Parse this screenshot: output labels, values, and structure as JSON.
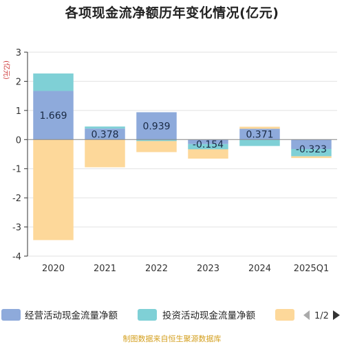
{
  "title": "各项现金流净额历年变化情况(亿元)",
  "footer": "制图数据来自恒生聚源数据库",
  "chart_data": {
    "type": "bar",
    "stacked": true,
    "title": "各项现金流净额历年变化情况(亿元)",
    "ylabel": "(亿元)",
    "ylim": [
      -4,
      3
    ],
    "yticks": [
      3,
      2,
      1,
      0,
      -1,
      -2,
      -3,
      -4
    ],
    "grid": true,
    "categories": [
      "2020",
      "2021",
      "2022",
      "2023",
      "2024",
      "2025Q1"
    ],
    "series": [
      {
        "name": "经营活动现金流量净额",
        "color": "#8eaadb",
        "values": [
          1.669,
          0.378,
          0.939,
          -0.154,
          0.371,
          -0.323
        ],
        "show_labels": true
      },
      {
        "name": "投资活动现金流量净额",
        "color": "#7fd0d6",
        "values": [
          0.6,
          0.07,
          -0.05,
          -0.18,
          -0.22,
          -0.25
        ],
        "show_labels": false
      },
      {
        "name": "",
        "color": "#fdd89a",
        "values": [
          -3.45,
          -0.95,
          -0.38,
          -0.32,
          0.07,
          -0.06
        ],
        "show_labels": false
      }
    ],
    "legend": {
      "position": "bottom",
      "page": "1/2"
    }
  }
}
